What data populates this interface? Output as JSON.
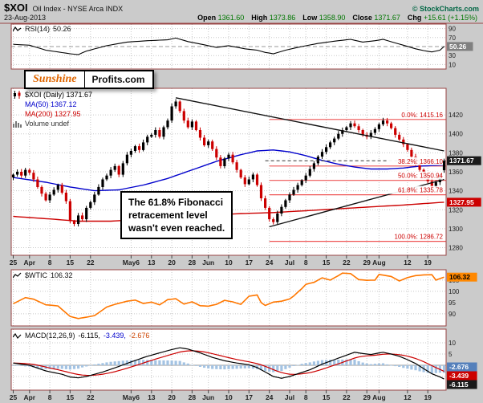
{
  "header": {
    "symbol": "$XOI",
    "title": "Oil Index - NYSE Arca INDX",
    "copyright": "© StockCharts.com",
    "date": "23-Aug-2013",
    "quote": [
      {
        "label": "Open",
        "value": "1361.60"
      },
      {
        "label": "High",
        "value": "1373.86"
      },
      {
        "label": "Low",
        "value": "1358.90"
      },
      {
        "label": "Close",
        "value": "1371.67"
      },
      {
        "label": "Chg",
        "value": "+15.61 (+1.15%)"
      }
    ]
  },
  "watermark": {
    "part1": "Sunshine",
    "part2": "Profits.com"
  },
  "annotation": {
    "lines": [
      "The 61.8% Fibonacci",
      "retracement level",
      "wasn't even reached."
    ]
  },
  "panels": {
    "rsi": {
      "name": "RSI(14)",
      "value": "50.26",
      "box": {
        "text": "50.26",
        "bg": "#808080",
        "fg": "#ffffff"
      }
    },
    "price": {
      "legend": [
        {
          "text": "$XOI (Daily) 1371.67",
          "color": "#000000"
        },
        {
          "text": "MA(50) 1367.12",
          "color": "#0000cc"
        },
        {
          "text": "MA(200) 1327.95",
          "color": "#cc0000"
        },
        {
          "text": "Volume undef",
          "color": "#333333"
        }
      ],
      "boxes": [
        {
          "text": "1371.67",
          "value": 1371.67,
          "bg": "#1a1a1a",
          "fg": "#ffffff"
        },
        {
          "text": "1327.95",
          "value": 1327.95,
          "bg": "#cc0000",
          "fg": "#ffffff"
        }
      ]
    },
    "wtic": {
      "name": "$WTIC",
      "value": "106.32",
      "box": {
        "text": "106.32",
        "bg": "#ff8800",
        "fg": "#000000"
      }
    },
    "macd": {
      "label": "MACD(12,26,9)",
      "values": [
        {
          "text": "-6.115,"
        },
        {
          "text": "-3.439,"
        },
        {
          "text": "-2.676"
        }
      ],
      "boxes": [
        {
          "text": "-2.676",
          "bg": "#5580bb",
          "fg": "#ffffff"
        },
        {
          "text": "-3.439",
          "bg": "#cc0000",
          "fg": "#ffffff"
        },
        {
          "text": "-6.115",
          "bg": "#1a1a1a",
          "fg": "#ffffff"
        }
      ]
    }
  },
  "x_axis": {
    "days_total": 107,
    "ticks": [
      {
        "label": "25",
        "day": 0
      },
      {
        "label": "Apr",
        "day": 4
      },
      {
        "label": "8",
        "day": 9
      },
      {
        "label": "15",
        "day": 14
      },
      {
        "label": "22",
        "day": 19
      },
      {
        "label": "May6",
        "day": 29
      },
      {
        "label": "13",
        "day": 34
      },
      {
        "label": "20",
        "day": 39
      },
      {
        "label": "28",
        "day": 44
      },
      {
        "label": "Jun",
        "day": 48
      },
      {
        "label": "10",
        "day": 53
      },
      {
        "label": "17",
        "day": 58
      },
      {
        "label": "24",
        "day": 63
      },
      {
        "label": "Jul",
        "day": 68
      },
      {
        "label": "8",
        "day": 72
      },
      {
        "label": "15",
        "day": 77
      },
      {
        "label": "22",
        "day": 82
      },
      {
        "label": "29",
        "day": 87
      },
      {
        "label": "Aug",
        "day": 90
      },
      {
        "label": "12",
        "day": 97
      },
      {
        "label": "19",
        "day": 102
      }
    ]
  },
  "colors": {
    "background": "#cbcbcb",
    "plot_bg": "#ffffff",
    "grid": "#c8c8c8",
    "panel_border": "#994444",
    "axis_text": "#222222",
    "up_candle": "#000000",
    "down_candle": "#cc0000",
    "ma50": "#0000cc",
    "ma200": "#cc0000",
    "rsi_line": "#000000",
    "wtic_line": "#ff7700",
    "macd_line": "#000000",
    "macd_signal": "#cc0000",
    "macd_hist": "#a3c3e3",
    "fib": "#ee5555",
    "fib_text": "#cc0000",
    "trend": "#111111",
    "quote_value": "#007700",
    "copyright": "#006644",
    "sunshine": "#e06600",
    "macd_value1": "#000000",
    "macd_value2": "#0000cc",
    "macd_value3": "#cc4400"
  },
  "chart_data": [
    {
      "panel": "rsi",
      "type": "line",
      "title": "RSI(14)",
      "last": 50.26,
      "ylim": [
        0,
        100
      ],
      "gridlines": [
        90,
        70,
        50,
        30,
        10
      ],
      "points": [
        [
          0,
          55
        ],
        [
          4,
          53
        ],
        [
          8,
          42
        ],
        [
          14,
          34
        ],
        [
          16,
          32
        ],
        [
          18,
          40
        ],
        [
          23,
          52
        ],
        [
          28,
          60
        ],
        [
          33,
          63
        ],
        [
          38,
          65
        ],
        [
          40,
          69
        ],
        [
          43,
          61
        ],
        [
          47,
          54
        ],
        [
          50,
          48
        ],
        [
          53,
          52
        ],
        [
          57,
          45
        ],
        [
          60,
          42
        ],
        [
          62,
          37
        ],
        [
          64,
          34
        ],
        [
          67,
          42
        ],
        [
          71,
          50
        ],
        [
          75,
          57
        ],
        [
          79,
          62
        ],
        [
          83,
          66
        ],
        [
          86,
          60
        ],
        [
          89,
          63
        ],
        [
          91,
          66
        ],
        [
          94,
          58
        ],
        [
          96,
          53
        ],
        [
          99,
          45
        ],
        [
          101,
          41
        ],
        [
          103,
          38
        ],
        [
          105,
          42
        ],
        [
          106,
          50.26
        ]
      ]
    },
    {
      "panel": "price",
      "type": "candlestick",
      "title": "$XOI (Daily)",
      "last": 1371.67,
      "ylim": [
        1272,
        1448
      ],
      "yticks": [
        1420,
        1400,
        1380,
        1360,
        1340,
        1320,
        1300,
        1280
      ],
      "closes": [
        1357,
        1360,
        1356,
        1362,
        1359,
        1352,
        1344,
        1337,
        1330,
        1336,
        1341,
        1346,
        1338,
        1329,
        1308,
        1305,
        1314,
        1310,
        1322,
        1328,
        1336,
        1344,
        1352,
        1356,
        1362,
        1366,
        1357,
        1369,
        1378,
        1382,
        1387,
        1383,
        1391,
        1397,
        1399,
        1404,
        1397,
        1407,
        1414,
        1429,
        1434,
        1424,
        1414,
        1407,
        1413,
        1404,
        1396,
        1388,
        1392,
        1384,
        1375,
        1366,
        1374,
        1378,
        1370,
        1362,
        1354,
        1347,
        1352,
        1357,
        1346,
        1332,
        1322,
        1310,
        1307,
        1316,
        1323,
        1330,
        1336,
        1341,
        1346,
        1351,
        1356,
        1363,
        1369,
        1376,
        1381,
        1386,
        1391,
        1395,
        1400,
        1404,
        1407,
        1411,
        1408,
        1404,
        1399,
        1397,
        1401,
        1405,
        1410,
        1414,
        1411,
        1406,
        1399,
        1394,
        1389,
        1383,
        1376,
        1368,
        1362,
        1356,
        1350,
        1344,
        1349,
        1356.06,
        1371.67
      ],
      "last_ohlc": {
        "open": 1361.6,
        "high": 1373.86,
        "low": 1358.9,
        "close": 1371.67
      },
      "ma50": {
        "last": 1367.12,
        "points": [
          [
            0,
            1354
          ],
          [
            8,
            1349
          ],
          [
            14,
            1344
          ],
          [
            20,
            1340
          ],
          [
            26,
            1341
          ],
          [
            32,
            1346
          ],
          [
            38,
            1353
          ],
          [
            44,
            1362
          ],
          [
            50,
            1371
          ],
          [
            56,
            1378
          ],
          [
            60,
            1382
          ],
          [
            64,
            1383
          ],
          [
            68,
            1381
          ],
          [
            72,
            1377
          ],
          [
            76,
            1372
          ],
          [
            80,
            1368
          ],
          [
            84,
            1365
          ],
          [
            88,
            1363
          ],
          [
            92,
            1363
          ],
          [
            96,
            1364
          ],
          [
            100,
            1366
          ],
          [
            106,
            1367.12
          ]
        ]
      },
      "ma200": {
        "last": 1327.95,
        "points": [
          [
            0,
            1313
          ],
          [
            10,
            1310
          ],
          [
            16,
            1308
          ],
          [
            24,
            1308
          ],
          [
            32,
            1310
          ],
          [
            40,
            1312
          ],
          [
            48,
            1314
          ],
          [
            56,
            1316
          ],
          [
            64,
            1317
          ],
          [
            72,
            1319
          ],
          [
            80,
            1321
          ],
          [
            88,
            1323
          ],
          [
            96,
            1325
          ],
          [
            106,
            1327.95
          ]
        ]
      },
      "fibonacci": [
        {
          "pct": "0.0%",
          "value": 1415.16
        },
        {
          "pct": "38.2%",
          "value": 1366.1
        },
        {
          "pct": "50.0%",
          "value": 1350.94
        },
        {
          "pct": "61.8%",
          "value": 1335.78
        },
        {
          "pct": "100.0%",
          "value": 1286.72
        }
      ],
      "trendlines": [
        {
          "from": [
            40,
            1438
          ],
          "to": [
            106,
            1382
          ]
        },
        {
          "from": [
            63,
            1302
          ],
          "to": [
            106,
            1352
          ]
        }
      ]
    },
    {
      "panel": "wtic",
      "type": "line",
      "title": "$WTIC",
      "last": 106.32,
      "ylim": [
        84.6,
        109.6
      ],
      "yticks": [
        105,
        100,
        95,
        90
      ],
      "points": [
        [
          0,
          94.5
        ],
        [
          3,
          97.2
        ],
        [
          5,
          96.5
        ],
        [
          8,
          94.0
        ],
        [
          11,
          93.5
        ],
        [
          14,
          88.8
        ],
        [
          16,
          87.9
        ],
        [
          18,
          88.5
        ],
        [
          20,
          89.2
        ],
        [
          23,
          93.0
        ],
        [
          25,
          94.2
        ],
        [
          28,
          95.6
        ],
        [
          30,
          96.1
        ],
        [
          32,
          94.6
        ],
        [
          34,
          95.2
        ],
        [
          36,
          94.0
        ],
        [
          38,
          96.3
        ],
        [
          40,
          96.7
        ],
        [
          42,
          94.3
        ],
        [
          44,
          95.3
        ],
        [
          46,
          93.6
        ],
        [
          48,
          93.4
        ],
        [
          50,
          94.2
        ],
        [
          52,
          96.0
        ],
        [
          54,
          95.3
        ],
        [
          56,
          94.2
        ],
        [
          58,
          97.8
        ],
        [
          60,
          98.4
        ],
        [
          61,
          95.0
        ],
        [
          62,
          93.7
        ],
        [
          64,
          95.2
        ],
        [
          66,
          95.6
        ],
        [
          68,
          96.6
        ],
        [
          69,
          97.9
        ],
        [
          70,
          99.6
        ],
        [
          71,
          101.2
        ],
        [
          72,
          103.1
        ],
        [
          74,
          104.0
        ],
        [
          76,
          106.0
        ],
        [
          78,
          105.0
        ],
        [
          80,
          107.0
        ],
        [
          81,
          108.1
        ],
        [
          83,
          107.9
        ],
        [
          85,
          105.2
        ],
        [
          87,
          104.9
        ],
        [
          89,
          105.0
        ],
        [
          90,
          107.5
        ],
        [
          93,
          106.6
        ],
        [
          95,
          104.6
        ],
        [
          97,
          106.1
        ],
        [
          99,
          107.0
        ],
        [
          101,
          107.3
        ],
        [
          103,
          107.4
        ],
        [
          104,
          105.0
        ],
        [
          106,
          106.32
        ]
      ]
    },
    {
      "panel": "macd",
      "type": "line+bar",
      "title": "MACD(12,26,9)",
      "last_values": [
        -6.115,
        -3.439,
        -2.676
      ],
      "ylim": [
        -11.07,
        16.07
      ],
      "yticks": [
        10,
        5,
        0,
        -5
      ],
      "macd_points": [
        [
          0,
          1.0
        ],
        [
          4,
          0.0
        ],
        [
          8,
          -2.5
        ],
        [
          12,
          -4.0
        ],
        [
          14,
          -5.2
        ],
        [
          16,
          -5.6
        ],
        [
          18,
          -5.0
        ],
        [
          22,
          -3.0
        ],
        [
          26,
          -0.5
        ],
        [
          29,
          1.5
        ],
        [
          33,
          4.0
        ],
        [
          36,
          5.5
        ],
        [
          39,
          7.0
        ],
        [
          41,
          7.8
        ],
        [
          43,
          7.2
        ],
        [
          46,
          5.5
        ],
        [
          49,
          3.5
        ],
        [
          52,
          2.0
        ],
        [
          55,
          1.0
        ],
        [
          58,
          0.2
        ],
        [
          60,
          -1.0
        ],
        [
          62,
          -3.0
        ],
        [
          64,
          -5.0
        ],
        [
          66,
          -5.8
        ],
        [
          68,
          -5.0
        ],
        [
          70,
          -3.8
        ],
        [
          73,
          -2.0
        ],
        [
          76,
          0.5
        ],
        [
          79,
          2.5
        ],
        [
          82,
          4.5
        ],
        [
          84,
          5.8
        ],
        [
          86,
          5.2
        ],
        [
          88,
          4.8
        ],
        [
          90,
          5.5
        ],
        [
          91,
          5.8
        ],
        [
          93,
          5.0
        ],
        [
          95,
          4.0
        ],
        [
          97,
          2.5
        ],
        [
          99,
          0.8
        ],
        [
          101,
          -1.5
        ],
        [
          103,
          -3.8
        ],
        [
          105,
          -5.2
        ],
        [
          106,
          -6.115
        ]
      ]
    }
  ]
}
